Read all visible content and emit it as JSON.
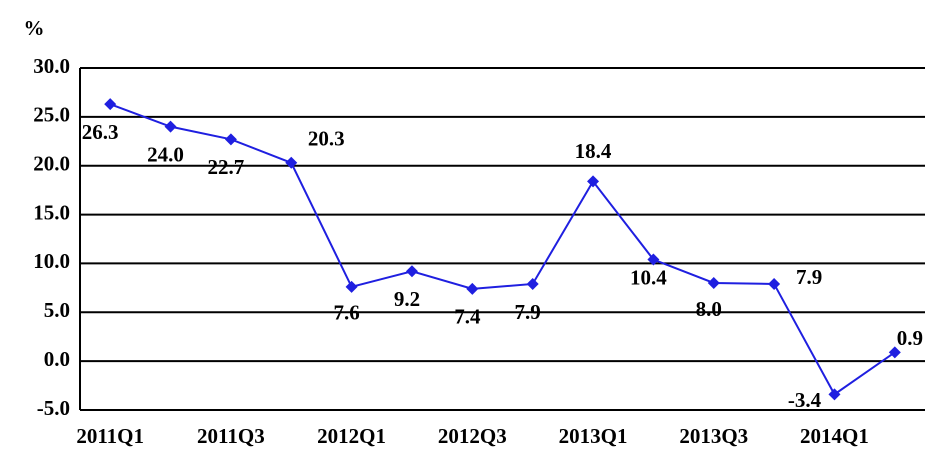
{
  "chart_data": {
    "type": "line",
    "y_label": "%",
    "categories": [
      "2011Q1",
      null,
      "2011Q3",
      null,
      "2012Q1",
      null,
      "2012Q3",
      null,
      "2013Q1",
      null,
      "2013Q3",
      null,
      "2014Q1",
      null
    ],
    "series": [
      {
        "name": null,
        "color": "#1f1fe0",
        "values": [
          26.3,
          24.0,
          22.7,
          20.3,
          7.6,
          9.2,
          7.4,
          7.9,
          18.4,
          10.4,
          8.0,
          7.9,
          -3.4,
          0.9
        ],
        "value_labels": [
          "26.3",
          "24.0",
          "22.7",
          "20.3",
          "7.6",
          "9.2",
          "7.4",
          "7.9",
          "18.4",
          "10.4",
          "8.0",
          "7.9",
          "-3.4",
          "0.9"
        ]
      }
    ],
    "ylim": [
      -5,
      30
    ],
    "yticks": [
      {
        "value": -5,
        "label": "-5.0"
      },
      {
        "value": 0,
        "label": "0.0"
      },
      {
        "value": 5,
        "label": "5.0"
      },
      {
        "value": 10,
        "label": "10.0"
      },
      {
        "value": 15,
        "label": "15.0"
      },
      {
        "value": 20,
        "label": "20.0"
      },
      {
        "value": 25,
        "label": "25.0"
      },
      {
        "value": 30,
        "label": "30.0"
      }
    ],
    "grid": true
  }
}
